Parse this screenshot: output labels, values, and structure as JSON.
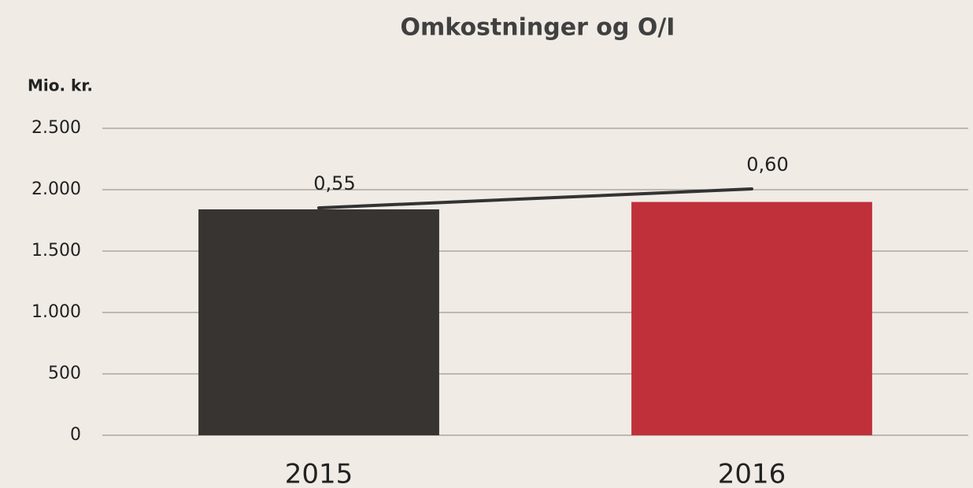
{
  "chart_data": {
    "type": "bar",
    "title": "Omkostninger og O/I",
    "y_label": "Mio. kr.",
    "categories": [
      "2015",
      "2016"
    ],
    "values": [
      1840,
      1900
    ],
    "colors": [
      "#373431",
      "#c0303a"
    ],
    "ylim": [
      0,
      2500
    ],
    "yticks": [
      0,
      500,
      {
        "value": 1000,
        "label": "1.000"
      },
      {
        "value": 1500,
        "label": "1.500"
      },
      {
        "value": 2000,
        "label": "2.000"
      },
      {
        "value": 2500,
        "label": "2.500"
      }
    ],
    "grid": true,
    "line": {
      "values": [
        0.55,
        0.6
      ],
      "value_labels": [
        "0,55",
        "0,60"
      ],
      "color": "#333333",
      "axis": "y2"
    },
    "y2lim": [
      -0.05,
      0.76
    ]
  }
}
